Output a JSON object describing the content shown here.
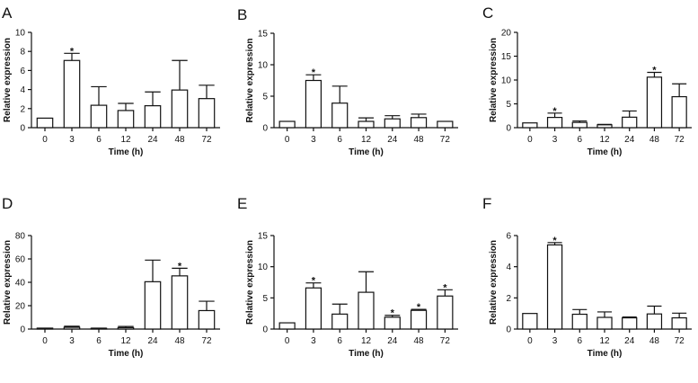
{
  "chart_data": [
    {
      "panel_label": "A",
      "type": "bar",
      "categories": [
        "0",
        "3",
        "6",
        "12",
        "24",
        "48",
        "72"
      ],
      "values": [
        1.0,
        7.05,
        2.35,
        1.8,
        2.3,
        3.95,
        3.05
      ],
      "errors": [
        0,
        0.75,
        1.95,
        0.75,
        1.45,
        3.1,
        1.4
      ],
      "significant": [
        false,
        true,
        false,
        false,
        false,
        false,
        false
      ],
      "xlabel": "Time (h)",
      "ylabel": "Relative expression",
      "ylim": [
        0,
        10
      ],
      "yticks": [
        0,
        2,
        4,
        6,
        8,
        10
      ]
    },
    {
      "panel_label": "B",
      "type": "bar",
      "categories": [
        "0",
        "3",
        "6",
        "12",
        "24",
        "48",
        "72"
      ],
      "values": [
        1.0,
        7.5,
        3.9,
        1.0,
        1.4,
        1.6,
        1.0
      ],
      "errors": [
        0,
        0.9,
        2.7,
        0.55,
        0.5,
        0.55,
        0
      ],
      "significant": [
        false,
        true,
        false,
        false,
        false,
        false,
        false
      ],
      "xlabel": "Time (h)",
      "ylabel": "Relative expression",
      "ylim": [
        0,
        15
      ],
      "yticks": [
        0,
        5,
        10,
        15
      ]
    },
    {
      "panel_label": "C",
      "type": "bar",
      "categories": [
        "0",
        "3",
        "6",
        "12",
        "24",
        "48",
        "72"
      ],
      "values": [
        1.0,
        2.15,
        1.1,
        0.6,
        2.2,
        10.6,
        6.5
      ],
      "errors": [
        0,
        0.9,
        0.3,
        0.1,
        1.3,
        1.0,
        2.7
      ],
      "significant": [
        false,
        true,
        false,
        false,
        false,
        true,
        false
      ],
      "xlabel": "Time (h)",
      "ylabel": "Relative expression",
      "ylim": [
        0,
        20
      ],
      "yticks": [
        0,
        5,
        10,
        15,
        20
      ]
    },
    {
      "panel_label": "D",
      "type": "bar",
      "categories": [
        "0",
        "3",
        "6",
        "12",
        "24",
        "48",
        "72"
      ],
      "values": [
        0.8,
        1.5,
        0.6,
        1.2,
        40.5,
        45.5,
        15.8
      ],
      "errors": [
        0,
        0.9,
        0.2,
        1.0,
        18.5,
        6.5,
        8.0
      ],
      "significant": [
        false,
        false,
        false,
        false,
        false,
        true,
        false
      ],
      "xlabel": "Time (h)",
      "ylabel": "Relative expression",
      "ylim": [
        0,
        80
      ],
      "yticks": [
        0,
        20,
        40,
        60,
        80
      ]
    },
    {
      "panel_label": "E",
      "type": "bar",
      "categories": [
        "0",
        "3",
        "6",
        "12",
        "24",
        "48",
        "72"
      ],
      "values": [
        1.0,
        6.6,
        2.4,
        5.9,
        1.9,
        3.0,
        5.3
      ],
      "errors": [
        0,
        0.8,
        1.6,
        3.3,
        0.3,
        0.15,
        1.0
      ],
      "significant": [
        false,
        true,
        false,
        false,
        true,
        true,
        true
      ],
      "xlabel": "Time (h)",
      "ylabel": "Relative expression",
      "ylim": [
        0,
        15
      ],
      "yticks": [
        0,
        5,
        10,
        15
      ]
    },
    {
      "panel_label": "F",
      "type": "bar",
      "categories": [
        "0",
        "3",
        "6",
        "12",
        "24",
        "48",
        "72"
      ],
      "values": [
        1.0,
        5.4,
        0.95,
        0.75,
        0.72,
        0.97,
        0.72
      ],
      "errors": [
        0,
        0.15,
        0.3,
        0.35,
        0.05,
        0.5,
        0.3
      ],
      "significant": [
        false,
        true,
        false,
        false,
        false,
        false,
        false
      ],
      "xlabel": "Time (h)",
      "ylabel": "Relative expression",
      "ylim": [
        0,
        6
      ],
      "yticks": [
        0,
        2,
        4,
        6
      ]
    }
  ]
}
